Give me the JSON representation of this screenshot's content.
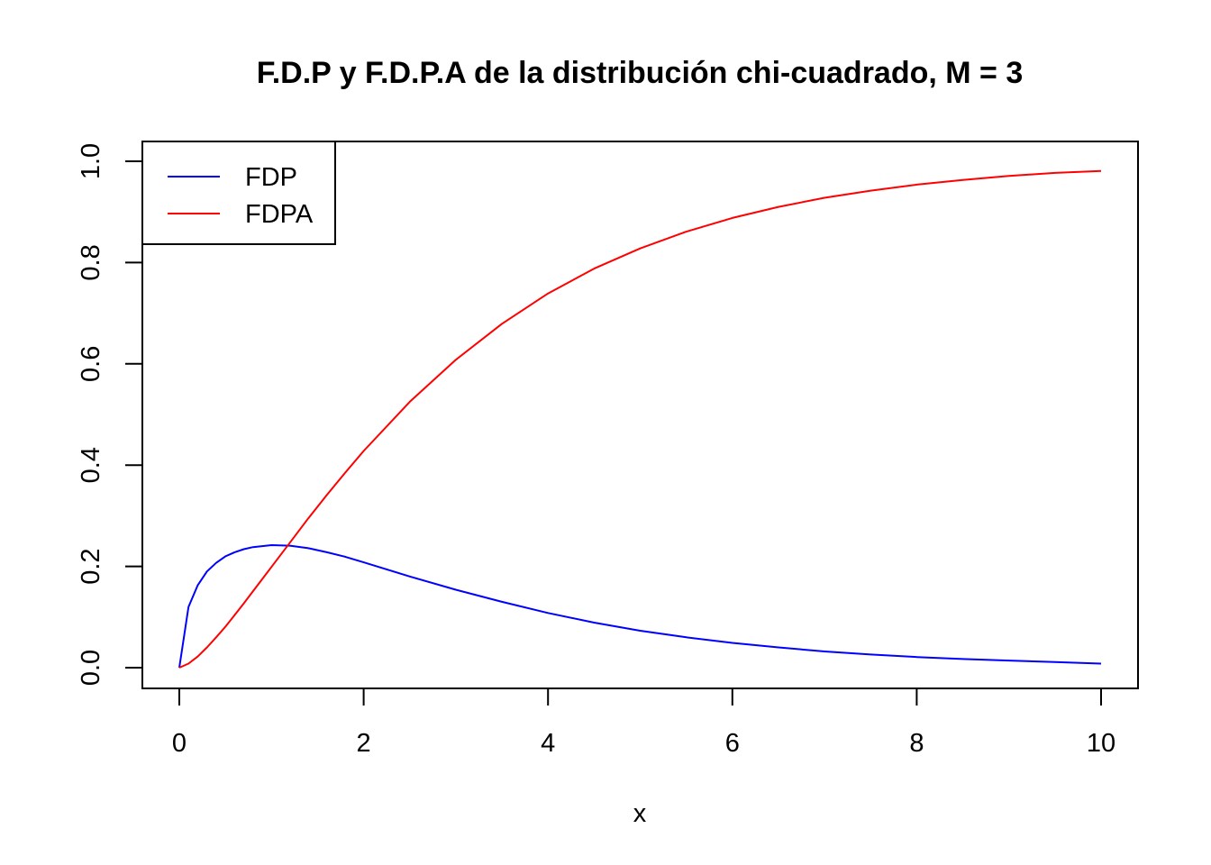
{
  "chart_data": {
    "type": "line",
    "title": "F.D.P y F.D.P.A de la distribución chi-cuadrado, M = 3",
    "xlabel": "x",
    "ylabel": "",
    "xlim": [
      0,
      10
    ],
    "ylim": [
      0,
      1
    ],
    "x_ticks": [
      "0",
      "2",
      "4",
      "6",
      "8",
      "10"
    ],
    "y_ticks": [
      "0.0",
      "0.2",
      "0.4",
      "0.6",
      "0.8",
      "1.0"
    ],
    "grid": false,
    "legend_position": "top-left",
    "x": [
      0,
      0.1,
      0.2,
      0.3,
      0.4,
      0.5,
      0.6,
      0.7,
      0.8,
      0.9,
      1.0,
      1.2,
      1.4,
      1.6,
      1.8,
      2.0,
      2.5,
      3.0,
      3.5,
      4.0,
      4.5,
      5.0,
      5.5,
      6.0,
      6.5,
      7.0,
      7.5,
      8.0,
      8.5,
      9.0,
      9.5,
      10.0
    ],
    "series": [
      {
        "name": "FDP",
        "color": "#0000ff",
        "values": [
          0,
          0.12,
          0.163,
          0.19,
          0.207,
          0.22,
          0.228,
          0.234,
          0.238,
          0.24,
          0.242,
          0.241,
          0.236,
          0.228,
          0.219,
          0.208,
          0.18,
          0.154,
          0.13,
          0.108,
          0.089,
          0.073,
          0.06,
          0.049,
          0.04,
          0.032,
          0.026,
          0.021,
          0.017,
          0.014,
          0.011,
          0.008
        ]
      },
      {
        "name": "FDPA",
        "color": "#ff0000",
        "values": [
          0,
          0.008,
          0.022,
          0.04,
          0.06,
          0.081,
          0.104,
          0.127,
          0.151,
          0.175,
          0.199,
          0.247,
          0.295,
          0.341,
          0.385,
          0.428,
          0.525,
          0.608,
          0.679,
          0.739,
          0.788,
          0.828,
          0.861,
          0.888,
          0.91,
          0.928,
          0.942,
          0.954,
          0.963,
          0.971,
          0.977,
          0.981
        ]
      }
    ]
  }
}
